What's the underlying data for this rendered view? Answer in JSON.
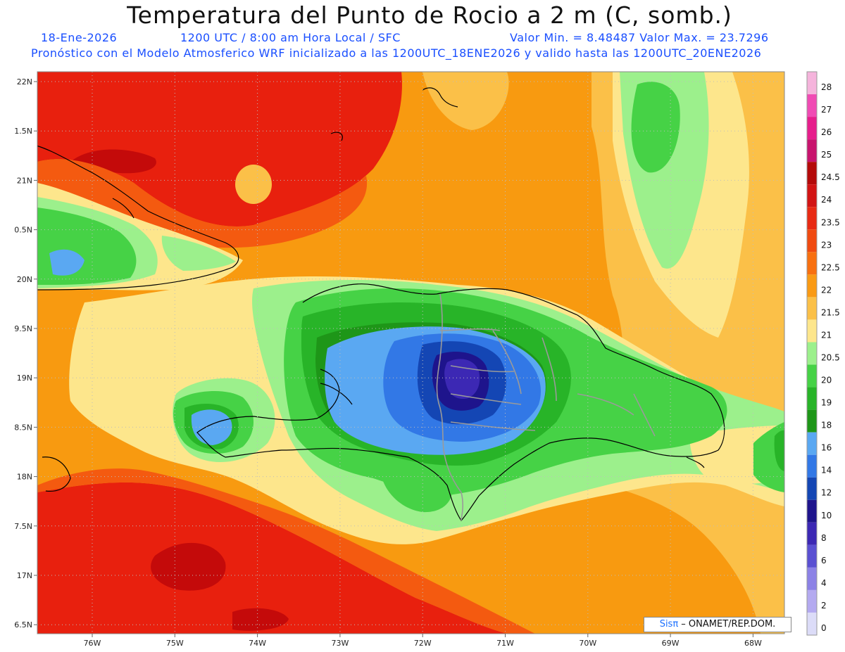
{
  "header": {
    "title": "Temperatura del Punto de Rocio a 2 m (C, somb.)",
    "date": "18-Ene-2026",
    "time": "1200 UTC / 8:00 am Hora Local / SFC",
    "minmax": "Valor Min. = 8.48487   Valor Max. = 23.7296",
    "model_line": "Pronóstico con el Modelo Atmosferico WRF inicializado a las 1200UTC_18ENE2026 y valido hasta las  1200UTC_20ENE2026"
  },
  "map": {
    "lat_ticks": [
      "22N",
      "1.5N",
      "21N",
      "0.5N",
      "20N",
      "9.5N",
      "19N",
      "8.5N",
      "18N",
      "7.5N",
      "17N",
      "6.5N"
    ],
    "lon_ticks": [
      "76W",
      "75W",
      "74W",
      "73W",
      "72W",
      "71W",
      "70W",
      "69W",
      "68W"
    ],
    "grid": true,
    "colors": {
      "c24": "#c40a0a",
      "c23": "#e8200e",
      "c225": "#f45a10",
      "c22": "#f89a10",
      "c215": "#fbc048",
      "c21": "#fde68c",
      "c205": "#9cf08c",
      "c20": "#46d246",
      "c19": "#28b428",
      "c18": "#1e9618",
      "c16": "#5aa8f2",
      "c14": "#3278e6",
      "c12": "#1446b4",
      "c10": "#1e148c",
      "c8": "#3c28b4"
    }
  },
  "legend": {
    "labels": [
      "28",
      "27",
      "26",
      "25",
      "24.5",
      "24",
      "23.5",
      "23",
      "22.5",
      "22",
      "21.5",
      "21",
      "20.5",
      "20",
      "19",
      "18",
      "16",
      "14",
      "12",
      "10",
      "8",
      "6",
      "4",
      "2",
      "0"
    ],
    "colors": [
      "#f5b4dc",
      "#f04bb4",
      "#e61e8c",
      "#c8146e",
      "#b40a0a",
      "#d21414",
      "#e82a14",
      "#f04a10",
      "#f87010",
      "#fa9a14",
      "#fbc048",
      "#fde68c",
      "#9cf08c",
      "#46d246",
      "#28b428",
      "#1e9618",
      "#5aa8f2",
      "#3278e6",
      "#1446b4",
      "#1e148c",
      "#3c28b4",
      "#5a50d2",
      "#8c82e6",
      "#b4aaf0",
      "#dcdcf8"
    ]
  },
  "credit": {
    "logo": "Sisπ",
    "text": " –  ONAMET/REP.DOM."
  }
}
